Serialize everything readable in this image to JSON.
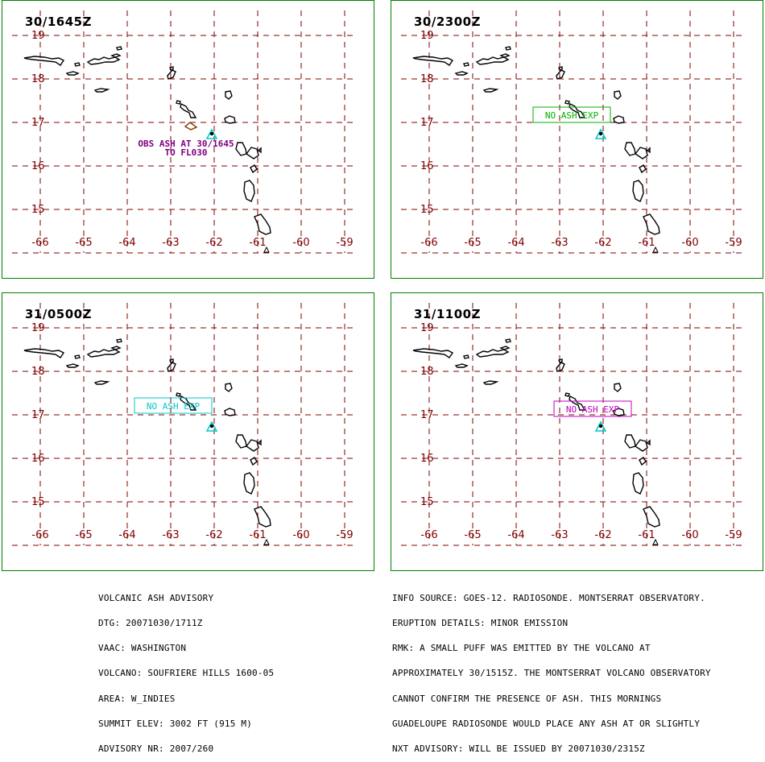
{
  "panels": [
    {
      "time": "30/1645Z",
      "annotation": {
        "lines": [
          "OBS ASH AT 30/1645",
          "TO FL030"
        ],
        "color": "#800080",
        "boxed": false
      },
      "ash_polygon": true
    },
    {
      "time": "30/2300Z",
      "annotation": {
        "lines": [
          "NO ASH EXP"
        ],
        "color": "#00b000",
        "boxed": true
      },
      "ash_polygon": false
    },
    {
      "time": "31/0500Z",
      "annotation": {
        "lines": [
          "NO ASH EXP"
        ],
        "color": "#00c8c8",
        "boxed": true
      },
      "ash_polygon": false
    },
    {
      "time": "31/1100Z",
      "annotation": {
        "lines": [
          "NO ASH EXP"
        ],
        "color": "#c000c0",
        "boxed": true
      },
      "ash_polygon": false
    }
  ],
  "map": {
    "lat_labels": [
      "19",
      "18",
      "17",
      "16",
      "15"
    ],
    "lon_labels": [
      "-66",
      "-65",
      "-64",
      "-63",
      "-62",
      "-61",
      "-60",
      "-59"
    ],
    "volcano_symbol": "volcano-triangle-icon",
    "colors": {
      "grid": "#800000",
      "border": "#008000",
      "land": "#000000",
      "volcano": "#00c8c8",
      "ash_area": "#8b4513"
    }
  },
  "advisory_left": [
    "VOLCANIC ASH ADVISORY",
    "DTG: 20071030/1711Z",
    "VAAC: WASHINGTON",
    "VOLCANO: SOUFRIERE HILLS 1600-05",
    "AREA: W_INDIES",
    "SUMMIT ELEV: 3002 FT (915 M)",
    "ADVISORY NR: 2007/260"
  ],
  "advisory_right": [
    "INFO SOURCE: GOES-12. RADIOSONDE. MONTSERRAT OBSERVATORY.",
    "ERUPTION DETAILS: MINOR EMISSION",
    "RMK: A SMALL PUFF WAS EMITTED BY THE VOLCANO AT",
    "APPROXIMATELY 30/1515Z. THE MONTSERRAT VOLCANO OBSERVATORY",
    "CANNOT CONFIRM THE PRESENCE OF ASH. THIS MORNINGS",
    "GUADELOUPE RADIOSONDE WOULD PLACE ANY ASH AT OR SLIGHTLY",
    "NXT ADVISORY: WILL BE ISSUED BY 20071030/2315Z"
  ]
}
